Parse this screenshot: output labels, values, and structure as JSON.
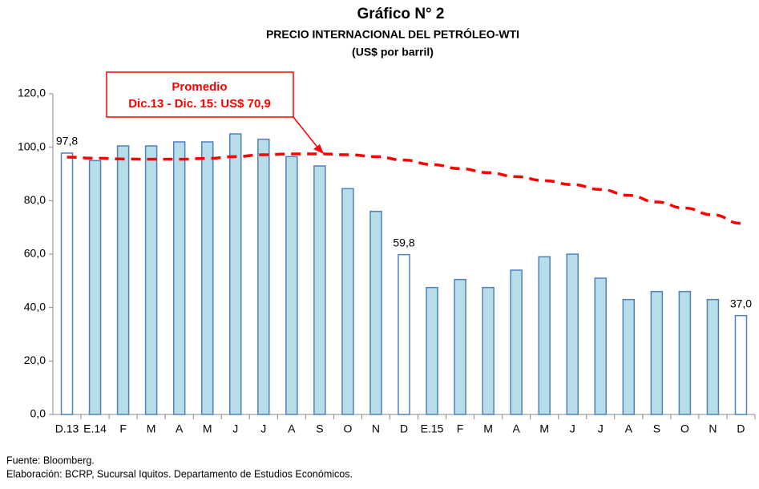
{
  "chart_data": {
    "type": "bar",
    "title": "Gráfico N° 2",
    "subtitle": [
      "PRECIO INTERNACIONAL DEL PETRÓLEO-WTI",
      "(US$ por barril)"
    ],
    "categories": [
      "D.13",
      "E.14",
      "F",
      "M",
      "A",
      "M",
      "J",
      "J",
      "A",
      "S",
      "O",
      "N",
      "D",
      "E.15",
      "F",
      "M",
      "A",
      "M",
      "J",
      "J",
      "A",
      "S",
      "O",
      "N",
      "D"
    ],
    "values": [
      97.8,
      95,
      100.5,
      100.5,
      102,
      102,
      105,
      103,
      96.5,
      93,
      84.5,
      76,
      59.8,
      47.5,
      50.5,
      47.5,
      54,
      59,
      60,
      51,
      43,
      46,
      46,
      43,
      37.0
    ],
    "value_labels": [
      "97,8",
      null,
      null,
      null,
      null,
      null,
      null,
      null,
      null,
      null,
      null,
      null,
      "59,8",
      null,
      null,
      null,
      null,
      null,
      null,
      null,
      null,
      null,
      null,
      null,
      "37,0"
    ],
    "colors": [
      "#ffffff",
      "#b7dde8",
      "#b7dde8",
      "#b7dde8",
      "#b7dde8",
      "#b7dde8",
      "#b7dde8",
      "#b7dde8",
      "#b7dde8",
      "#b7dde8",
      "#b7dde8",
      "#b7dde8",
      "#ffffff",
      "#b7dde8",
      "#b7dde8",
      "#b7dde8",
      "#b7dde8",
      "#b7dde8",
      "#b7dde8",
      "#b7dde8",
      "#b7dde8",
      "#b7dde8",
      "#b7dde8",
      "#b7dde8",
      "#ffffff"
    ],
    "edge_color": "#4f81bd",
    "average_line": {
      "color": "#ff0000",
      "dashed": true,
      "values": [
        96.3,
        95.9,
        95.6,
        95.5,
        95.5,
        95.8,
        96.5,
        97.2,
        97.5,
        97.5,
        97.2,
        96.5,
        95.2,
        93.5,
        92,
        90.5,
        89,
        87.5,
        86,
        84.2,
        82,
        79.5,
        77.2,
        74.7,
        71.5
      ]
    },
    "annotation": [
      "Promedio",
      "Dic.13 - Dic. 15: US$ 70,9"
    ],
    "ylim": [
      0,
      120
    ],
    "yticks": [
      {
        "value": 0,
        "label": "0,0"
      },
      {
        "value": 20,
        "label": "20,0"
      },
      {
        "value": 40,
        "label": "40,0"
      },
      {
        "value": 60,
        "label": "60,0"
      },
      {
        "value": 80,
        "label": "80,0"
      },
      {
        "value": 100,
        "label": "100,0"
      },
      {
        "value": 120,
        "label": "120,0"
      }
    ],
    "footnotes": [
      "Fuente: Bloomberg.",
      "Elaboración: BCRP, Sucursal Iquitos. Departamento de Estudios Económicos."
    ]
  }
}
